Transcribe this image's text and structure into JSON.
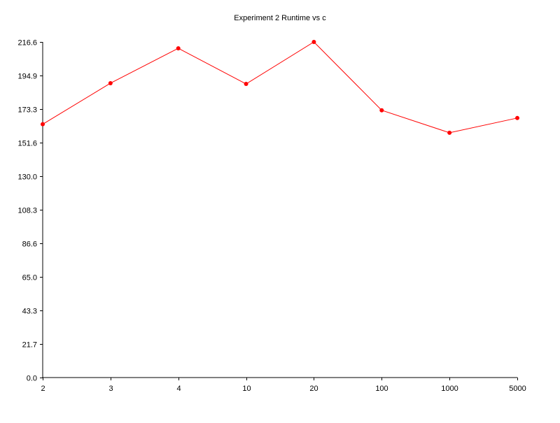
{
  "chart_data": {
    "type": "line",
    "title": "Experiment 2 Runtime vs c",
    "xlabel": "",
    "ylabel": "",
    "categories": [
      "2",
      "3",
      "4",
      "10",
      "20",
      "100",
      "1000",
      "5000"
    ],
    "series": [
      {
        "name": "",
        "color": "#ff0000",
        "values": [
          163.5,
          190.0,
          212.5,
          189.5,
          216.6,
          172.5,
          158.0,
          167.5
        ]
      }
    ],
    "ylim": [
      0.0,
      216.6
    ],
    "yticks": [
      "0.0",
      "21.7",
      "43.3",
      "65.0",
      "86.6",
      "108.3",
      "130.0",
      "151.6",
      "173.3",
      "194.9",
      "216.6"
    ],
    "grid": false,
    "legend": "none"
  }
}
